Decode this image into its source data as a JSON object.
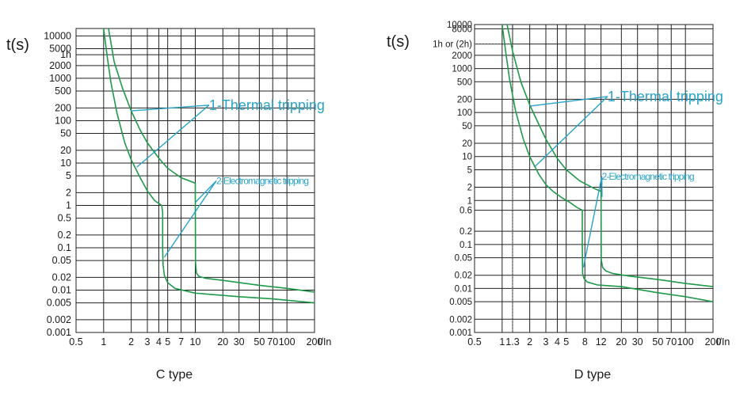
{
  "colors": {
    "curve": "#1f9a4a",
    "annotation": "#29a3c8",
    "grid": "#222222",
    "guide": "#666666"
  },
  "chart_data": [
    {
      "type": "line",
      "title": "",
      "caption": "C type",
      "ylabel": "t(s)",
      "xunit": "I/In",
      "x_scale": "log",
      "y_scale": "log",
      "xlim": [
        0.5,
        200
      ],
      "ylim": [
        0.001,
        15000
      ],
      "x_ticks": [
        {
          "label": "0.5",
          "v": 0.5
        },
        {
          "label": "1",
          "v": 1
        },
        {
          "label": "2",
          "v": 2
        },
        {
          "label": "3",
          "v": 3
        },
        {
          "label": "4",
          "v": 4
        },
        {
          "label": "5",
          "v": 5
        },
        {
          "label": "7",
          "v": 7
        },
        {
          "label": "10",
          "v": 10
        },
        {
          "label": "20",
          "v": 20
        },
        {
          "label": "30",
          "v": 30
        },
        {
          "label": "50",
          "v": 50
        },
        {
          "label": "70",
          "v": 70
        },
        {
          "label": "100",
          "v": 100
        },
        {
          "label": "200",
          "v": 200
        }
      ],
      "x_grid": [
        1,
        2,
        3,
        4,
        5,
        7,
        10,
        20,
        30,
        50,
        70,
        100
      ],
      "y_ticks": [
        {
          "label": "10000",
          "v": 10000
        },
        {
          "label": "5000",
          "v": 5000
        },
        {
          "label": "1h",
          "v": 3600
        },
        {
          "label": "2000",
          "v": 2000
        },
        {
          "label": "1000",
          "v": 1000
        },
        {
          "label": "500",
          "v": 500
        },
        {
          "label": "200",
          "v": 200
        },
        {
          "label": "100",
          "v": 100
        },
        {
          "label": "50",
          "v": 50
        },
        {
          "label": "20",
          "v": 20
        },
        {
          "label": "10",
          "v": 10
        },
        {
          "label": "5",
          "v": 5
        },
        {
          "label": "2",
          "v": 2
        },
        {
          "label": "1",
          "v": 1
        },
        {
          "label": "0.5",
          "v": 0.5
        },
        {
          "label": "0.2",
          "v": 0.2
        },
        {
          "label": "0.1",
          "v": 0.1
        },
        {
          "label": "0.05",
          "v": 0.05
        },
        {
          "label": "0.02",
          "v": 0.02
        },
        {
          "label": "0.01",
          "v": 0.01
        },
        {
          "label": "0.005",
          "v": 0.005
        },
        {
          "label": "0.002",
          "v": 0.002
        },
        {
          "label": "0.001",
          "v": 0.001
        }
      ],
      "y_grid": [
        10000,
        5000,
        3600,
        2000,
        1000,
        500,
        200,
        100,
        50,
        20,
        10,
        5,
        2,
        1,
        0.5,
        0.2,
        0.1,
        0.05,
        0.02,
        0.01,
        0.005,
        0.002
      ],
      "series": [
        {
          "name": "lower",
          "x": [
            1.0,
            1.1,
            1.2,
            1.4,
            1.7,
            2.0,
            2.5,
            3.0,
            3.6,
            4.3,
            4.4,
            4.4,
            4.45,
            4.6,
            5.0,
            6.0,
            10,
            30,
            70,
            200
          ],
          "y": [
            15000,
            3000,
            800,
            150,
            30,
            12,
            4.5,
            2.2,
            1.3,
            1.0,
            0.7,
            0.1,
            0.04,
            0.022,
            0.015,
            0.011,
            0.0085,
            0.007,
            0.0062,
            0.005
          ]
        },
        {
          "name": "upper",
          "x": [
            1.13,
            1.3,
            1.6,
            2.0,
            2.5,
            3.0,
            4.0,
            5.0,
            7.0,
            9.5,
            10,
            10,
            10.05,
            10.3,
            11,
            13,
            20,
            50,
            100,
            200
          ],
          "y": [
            15000,
            2500,
            600,
            170,
            60,
            30,
            13,
            7.5,
            4.5,
            3.5,
            3.3,
            1.5,
            0.045,
            0.025,
            0.021,
            0.019,
            0.017,
            0.013,
            0.011,
            0.009
          ]
        }
      ],
      "annotations": [
        {
          "label": "1-Thermal tripping",
          "size": "big",
          "text_at": [
            15,
            180
          ],
          "targets": [
            [
              2.0,
              170
            ],
            [
              2.3,
              8
            ]
          ]
        },
        {
          "label": "2-Electromagnetic tripping",
          "size": "small",
          "text_at": [
            18,
            3.2
          ],
          "targets": [
            [
              4.6,
              0.06
            ],
            [
              10.1,
              1.2
            ]
          ]
        }
      ]
    },
    {
      "type": "line",
      "title": "",
      "caption": "D type",
      "ylabel": "t(s)",
      "xunit": "I/In",
      "x_scale": "log",
      "y_scale": "log",
      "xlim": [
        0.5,
        200
      ],
      "ylim": [
        0.001,
        10000
      ],
      "x_ticks": [
        {
          "label": "0.5",
          "v": 0.5
        },
        {
          "label": "1",
          "v": 1
        },
        {
          "label": "1.3",
          "v": 1.3
        },
        {
          "label": "2",
          "v": 2
        },
        {
          "label": "3",
          "v": 3
        },
        {
          "label": "4",
          "v": 4
        },
        {
          "label": "5",
          "v": 5
        },
        {
          "label": "8",
          "v": 8
        },
        {
          "label": "12",
          "v": 12
        },
        {
          "label": "20",
          "v": 20
        },
        {
          "label": "30",
          "v": 30
        },
        {
          "label": "50",
          "v": 50
        },
        {
          "label": "70",
          "v": 70
        },
        {
          "label": "100",
          "v": 100
        },
        {
          "label": "200",
          "v": 200
        }
      ],
      "x_grid": [
        1,
        1.3,
        2,
        3,
        4,
        5,
        8,
        12,
        20,
        30,
        50,
        70,
        100
      ],
      "y_ticks": [
        {
          "label": "10000",
          "v": 10000
        },
        {
          "label": "8000",
          "v": 8000
        },
        {
          "label": "1h or (2h)",
          "v": 3600
        },
        {
          "label": "2000",
          "v": 2000
        },
        {
          "label": "1000",
          "v": 1000
        },
        {
          "label": "500",
          "v": 500
        },
        {
          "label": "200",
          "v": 200
        },
        {
          "label": "100",
          "v": 100
        },
        {
          "label": "50",
          "v": 50
        },
        {
          "label": "20",
          "v": 20
        },
        {
          "label": "10",
          "v": 10
        },
        {
          "label": "5",
          "v": 5
        },
        {
          "label": "2",
          "v": 2
        },
        {
          "label": "1",
          "v": 1
        },
        {
          "label": "0.6",
          "v": 0.6
        },
        {
          "label": "0.2",
          "v": 0.2
        },
        {
          "label": "0.1",
          "v": 0.1
        },
        {
          "label": "0.05",
          "v": 0.05
        },
        {
          "label": "0.02",
          "v": 0.02
        },
        {
          "label": "0.01",
          "v": 0.01
        },
        {
          "label": "0.005",
          "v": 0.005
        },
        {
          "label": "0.002",
          "v": 0.002
        },
        {
          "label": "0.001",
          "v": 0.001
        }
      ],
      "y_grid": [
        8000,
        3600,
        2000,
        1000,
        500,
        200,
        100,
        50,
        20,
        10,
        5,
        2,
        1,
        0.6,
        0.2,
        0.1,
        0.05,
        0.02,
        0.01,
        0.005,
        0.002
      ],
      "guide": {
        "x": 1.3,
        "y": 3600
      },
      "series": [
        {
          "name": "lower",
          "x": [
            1.0,
            1.1,
            1.2,
            1.4,
            1.7,
            2.0,
            2.5,
            3.0,
            3.6,
            4.5,
            5.5,
            6.5,
            7.5,
            7.5,
            7.55,
            7.8,
            8.5,
            11,
            20,
            50,
            100,
            200
          ],
          "y": [
            10000,
            2200,
            600,
            110,
            25,
            10,
            4,
            2.3,
            1.6,
            1.15,
            0.9,
            0.7,
            0.6,
            0.1,
            0.022,
            0.017,
            0.014,
            0.012,
            0.011,
            0.008,
            0.0065,
            0.005
          ]
        },
        {
          "name": "upper",
          "x": [
            1.13,
            1.3,
            1.6,
            2.0,
            2.5,
            3.0,
            4.0,
            5.0,
            7.0,
            10,
            12,
            12,
            12.05,
            12.5,
            13.5,
            16,
            25,
            50,
            100,
            200
          ],
          "y": [
            10000,
            2500,
            500,
            150,
            55,
            25,
            9,
            5,
            2.8,
            1.9,
            1.6,
            1.2,
            0.045,
            0.03,
            0.025,
            0.022,
            0.019,
            0.016,
            0.013,
            0.011
          ]
        }
      ],
      "annotations": [
        {
          "label": "1-Thermal tripping",
          "size": "big",
          "text_at": [
            15,
            180
          ],
          "targets": [
            [
              2.0,
              140
            ],
            [
              2.3,
              6
            ]
          ]
        },
        {
          "label": "2-Electromagnetic tripping",
          "size": "small",
          "text_at": [
            13,
            3
          ],
          "targets": [
            [
              7.7,
              0.03
            ],
            [
              12.3,
              1.2
            ]
          ]
        }
      ]
    }
  ]
}
